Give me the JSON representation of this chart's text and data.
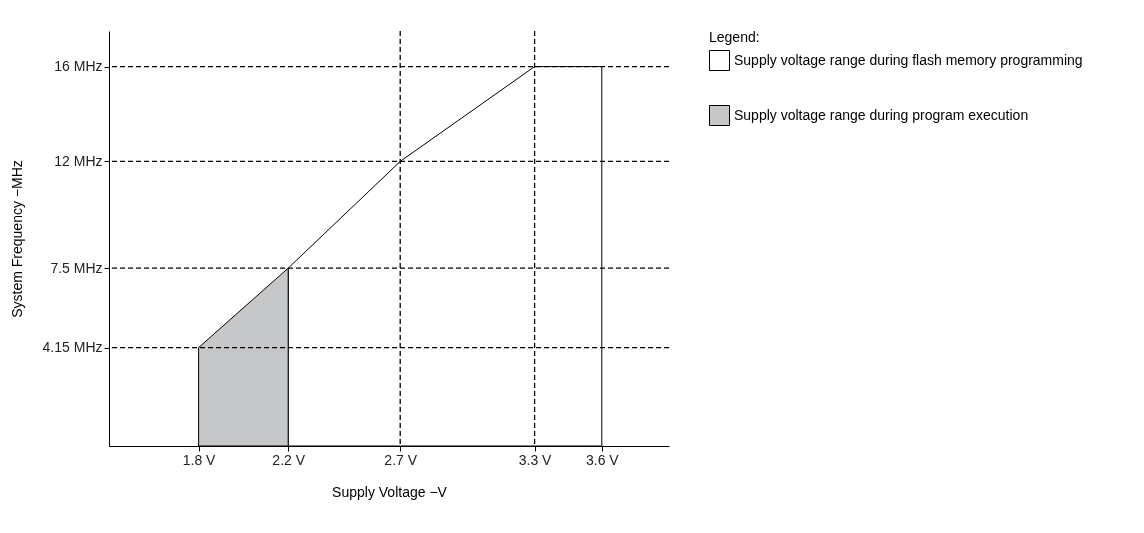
{
  "chart_data": {
    "type": "area",
    "xlabel": "Supply Voltage −V",
    "ylabel": "System Frequency −MHz",
    "legend_title": "Legend:",
    "xlim": [
      1.4,
      3.9
    ],
    "ylim": [
      0,
      17.5
    ],
    "xticks": [
      {
        "value": 1.8,
        "label": "1.8 V"
      },
      {
        "value": 2.2,
        "label": "2.2 V"
      },
      {
        "value": 2.7,
        "label": "2.7 V"
      },
      {
        "value": 3.3,
        "label": "3.3 V"
      },
      {
        "value": 3.6,
        "label": "3.6 V"
      }
    ],
    "yticks": [
      {
        "value": 4.15,
        "label": "4.15 MHz"
      },
      {
        "value": 7.5,
        "label": "7.5 MHz"
      },
      {
        "value": 12,
        "label": "12 MHz"
      },
      {
        "value": 16,
        "label": "16 MHz"
      }
    ],
    "series": [
      {
        "name": "Supply voltage range during flash memory programming",
        "color": "#ffffff",
        "x": [
          2.2,
          2.7,
          3.3,
          3.6
        ],
        "values": [
          7.5,
          12,
          16,
          16
        ]
      },
      {
        "name": "Supply voltage range during program execution",
        "color": "#c6c7c9",
        "x": [
          1.8,
          2.2
        ],
        "values": [
          4.15,
          7.5
        ]
      }
    ],
    "ref_lines": [
      {
        "axis": "y",
        "value": 4.15,
        "color": "#000000",
        "line_style": "dashed"
      },
      {
        "axis": "y",
        "value": 7.5,
        "color": "#000000",
        "line_style": "dashed"
      },
      {
        "axis": "y",
        "value": 12,
        "color": "#000000",
        "line_style": "dashed"
      },
      {
        "axis": "y",
        "value": 16,
        "color": "#000000",
        "line_style": "dashed"
      },
      {
        "axis": "x",
        "value": 2.7,
        "color": "#000000",
        "line_style": "dashed"
      },
      {
        "axis": "x",
        "value": 3.3,
        "color": "#000000",
        "line_style": "dashed"
      }
    ],
    "legend": "top right"
  }
}
